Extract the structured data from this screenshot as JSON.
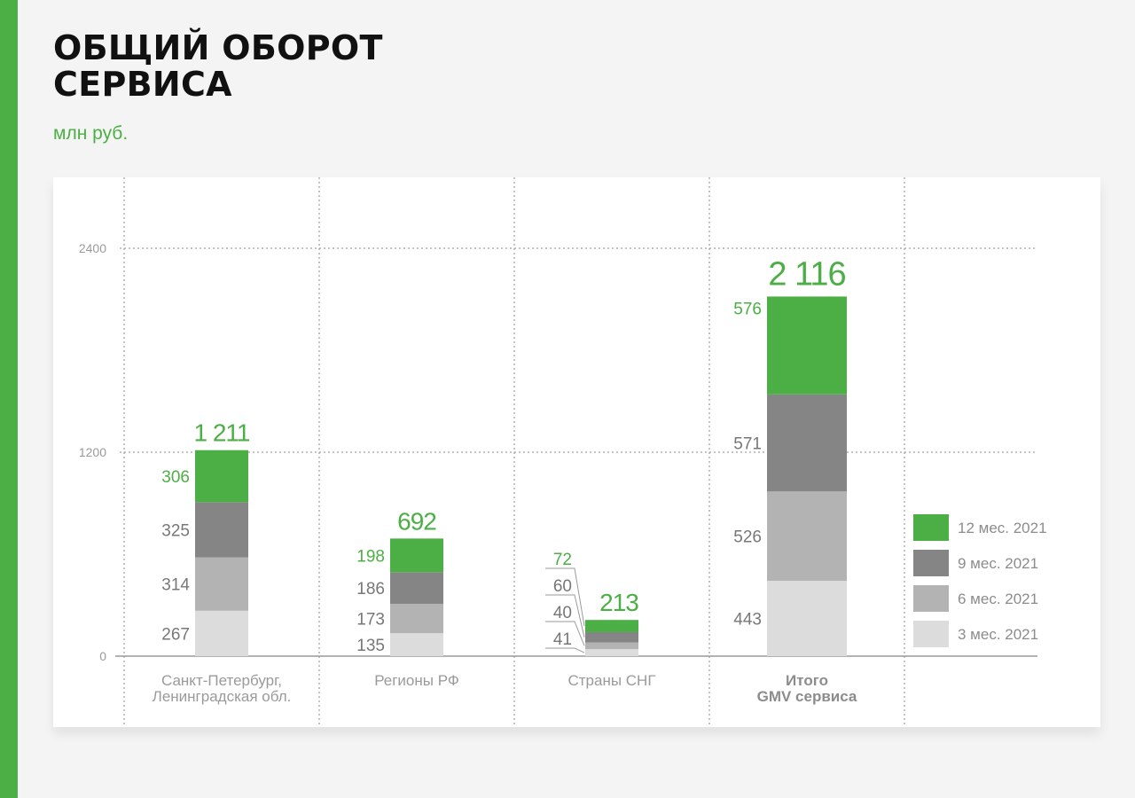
{
  "header": {
    "title_line1": "ОБЩИЙ ОБОРОТ",
    "title_line2": "СЕРВИСА",
    "subtitle": "млн руб."
  },
  "colors": {
    "accent": "#4caf45",
    "s12": "#4caf45",
    "s9": "#858585",
    "s6": "#b3b3b3",
    "s3": "#dcdcdc",
    "label_gray": "#777777",
    "axis": "#999999"
  },
  "chart_data": {
    "type": "bar",
    "stacked": true,
    "categories": [
      [
        "Санкт-Петербург,",
        "Ленинградская обл."
      ],
      [
        "Регионы РФ"
      ],
      [
        "Страны СНГ"
      ],
      [
        "Итого",
        "GMV сервиса"
      ]
    ],
    "series": [
      {
        "name": "3 мес. 2021",
        "values": [
          267,
          135,
          41,
          443
        ]
      },
      {
        "name": "6 мес. 2021",
        "values": [
          314,
          173,
          40,
          526
        ]
      },
      {
        "name": "9 мес. 2021",
        "values": [
          325,
          186,
          60,
          571
        ]
      },
      {
        "name": "12 мес. 2021",
        "values": [
          306,
          198,
          72,
          576
        ]
      }
    ],
    "totals": [
      "1 211",
      "692",
      "213",
      "2 116"
    ],
    "ylim": [
      0,
      2400
    ],
    "yticks": [
      0,
      1200,
      2400
    ],
    "grid": true,
    "legend": "right",
    "xlabel": "",
    "ylabel": ""
  }
}
